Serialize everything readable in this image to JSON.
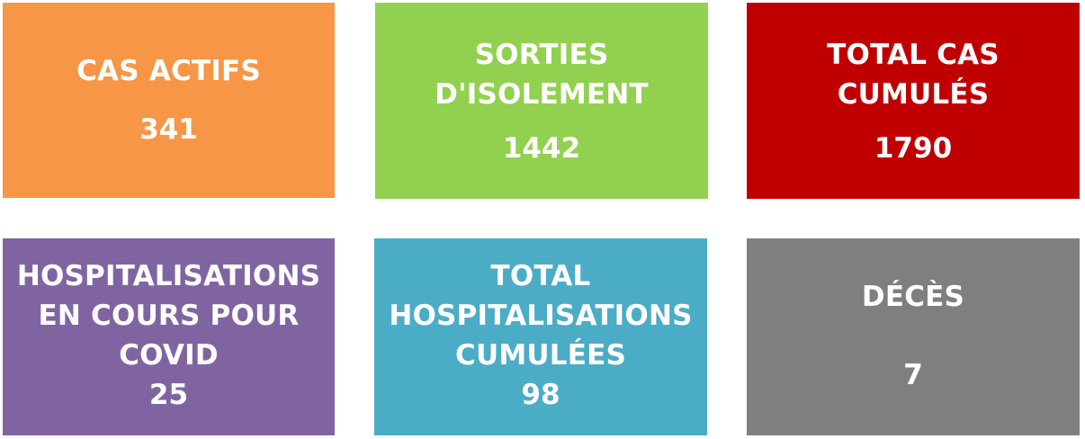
{
  "tiles": [
    {
      "label_lines": [
        "CAS ACTIFS"
      ],
      "value": "341",
      "color": "#f79646"
    },
    {
      "label_lines": [
        "SORTIES",
        "D'ISOLEMENT"
      ],
      "value": "1442",
      "color": "#92d050"
    },
    {
      "label_lines": [
        "TOTAL CAS",
        "CUMULÉS"
      ],
      "value": "1790",
      "color": "#c00000"
    },
    {
      "label_lines": [
        "HOSPITALISATIONS",
        "EN COURS POUR",
        "COVID"
      ],
      "value": "25",
      "color": "#8064a2"
    },
    {
      "label_lines": [
        "TOTAL",
        "HOSPITALISATIONS",
        "CUMULÉES"
      ],
      "value": "98",
      "color": "#4bacc6"
    },
    {
      "label_lines": [
        "DÉCÈS"
      ],
      "value": "7",
      "color": "#7f7f7f"
    }
  ]
}
